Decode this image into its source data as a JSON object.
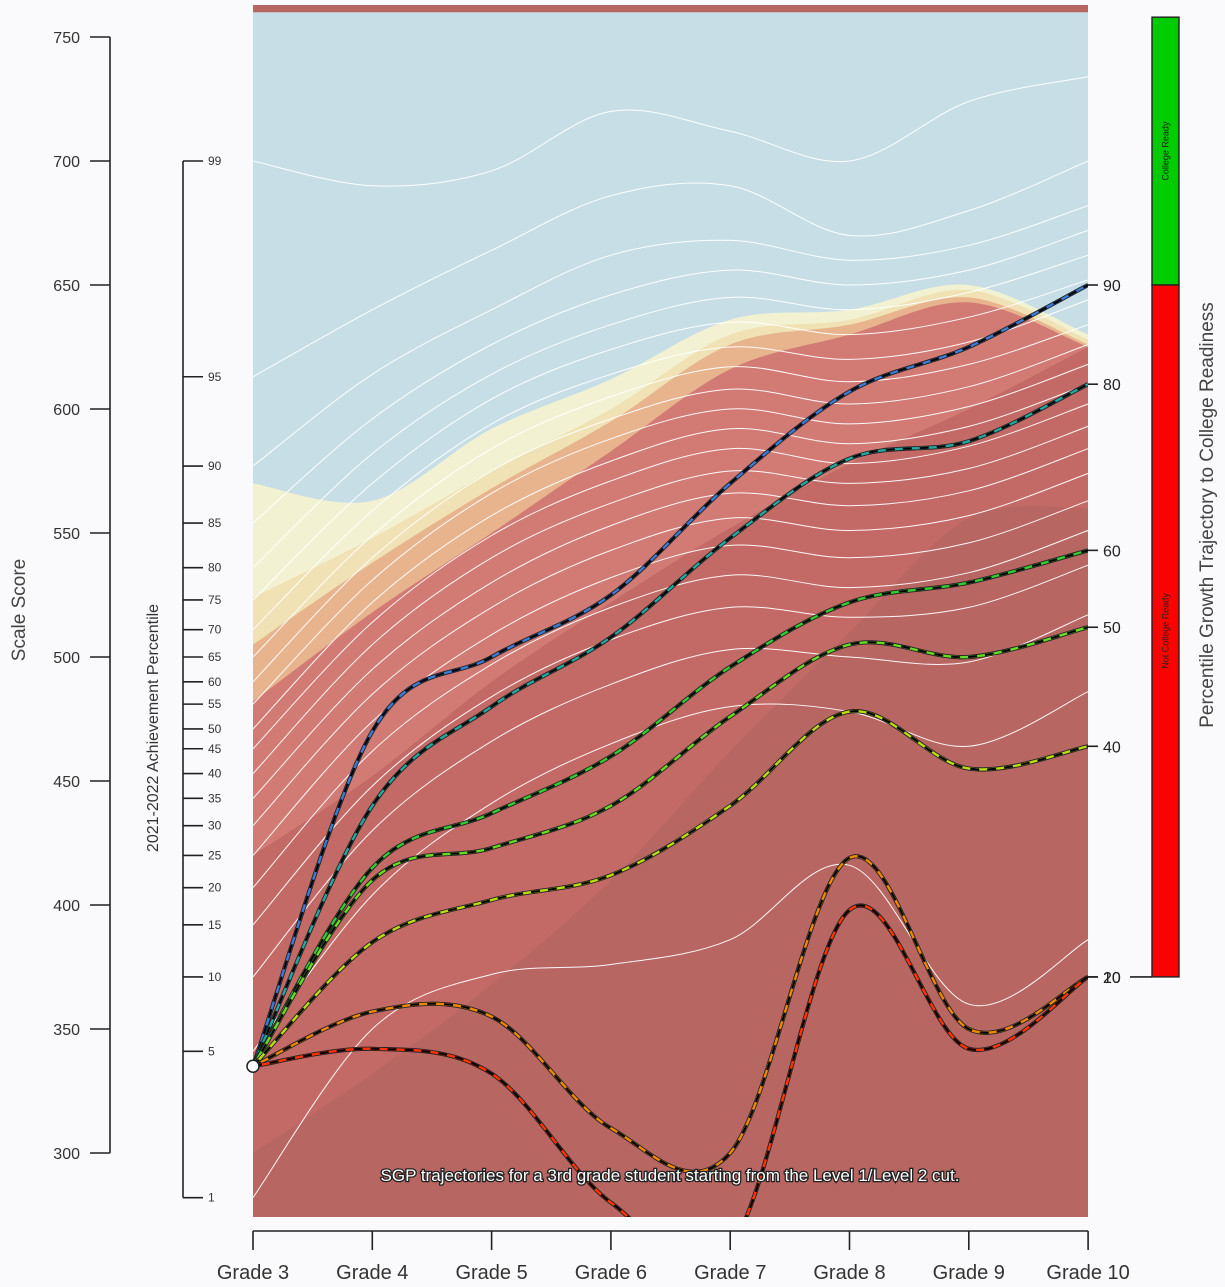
{
  "chart_data": {
    "type": "line",
    "grades": [
      "Grade 3",
      "Grade 4",
      "Grade 5",
      "Grade 6",
      "Grade 7",
      "Grade 8",
      "Grade 9",
      "Grade 10"
    ],
    "scale_axis": {
      "title": "Scale Score",
      "ticks": [
        300,
        350,
        400,
        450,
        500,
        550,
        600,
        650,
        700,
        750
      ],
      "range": [
        300,
        750
      ]
    },
    "percentile_axis": {
      "title": "2021-2022 Achievement Percentile",
      "ticks": [
        {
          "label": "99",
          "score": 700
        },
        {
          "label": "95",
          "score": 613
        },
        {
          "label": "90",
          "score": 577
        },
        {
          "label": "85",
          "score": 554
        },
        {
          "label": "80",
          "score": 536
        },
        {
          "label": "75",
          "score": 523
        },
        {
          "label": "70",
          "score": 511
        },
        {
          "label": "65",
          "score": 500
        },
        {
          "label": "60",
          "score": 490
        },
        {
          "label": "55",
          "score": 481
        },
        {
          "label": "50",
          "score": 471
        },
        {
          "label": "45",
          "score": 463
        },
        {
          "label": "40",
          "score": 453
        },
        {
          "label": "35",
          "score": 443
        },
        {
          "label": "30",
          "score": 432
        },
        {
          "label": "25",
          "score": 420
        },
        {
          "label": "20",
          "score": 407
        },
        {
          "label": "15",
          "score": 392
        },
        {
          "label": "10",
          "score": 371
        },
        {
          "label": "5",
          "score": 341
        },
        {
          "label": "1",
          "score": 282
        }
      ]
    },
    "growth_axis": {
      "title": "Percentile Growth Trajectory to College Readiness",
      "labels": [
        {
          "label": "90",
          "score": 650
        },
        {
          "label": "80",
          "score": 610
        },
        {
          "label": "60",
          "score": 543
        },
        {
          "label": "50",
          "score": 512
        },
        {
          "label": "40",
          "score": 464
        },
        {
          "label": "20",
          "score": 371
        },
        {
          "label": "10",
          "score": 371
        }
      ]
    },
    "readiness_bar": {
      "segments": [
        {
          "label": "College Ready",
          "color": "#00cc00",
          "from": 650,
          "to": 758
        },
        {
          "label": "Not College Ready",
          "color": "#ff0000",
          "from": 371,
          "to": 650
        }
      ]
    },
    "level_bands": {
      "colors": [
        "#c8dee6",
        "#f2f2d2",
        "#f0e2b4",
        "#e8b48e",
        "#d27a74",
        "#c46a66",
        "#b86662"
      ]
    },
    "start_point": {
      "grade": "Grade 3",
      "score": 335
    },
    "trajectories": [
      {
        "percentile": 90,
        "color": "#3a7bd5",
        "scores": [
          335,
          470,
          500,
          525,
          570,
          607,
          625,
          650
        ]
      },
      {
        "percentile": 80,
        "color": "#22a8a0",
        "scores": [
          335,
          440,
          480,
          508,
          548,
          580,
          587,
          610
        ]
      },
      {
        "percentile": 60,
        "color": "#33cc33",
        "scores": [
          335,
          415,
          437,
          460,
          496,
          522,
          530,
          543
        ]
      },
      {
        "percentile": 50,
        "color": "#66dd22",
        "scores": [
          335,
          410,
          423,
          440,
          476,
          505,
          500,
          512
        ]
      },
      {
        "percentile": 40,
        "color": "#bbdd11",
        "scores": [
          335,
          385,
          402,
          412,
          440,
          478,
          455,
          464
        ]
      },
      {
        "percentile": 20,
        "color": "#ee8800",
        "scores": [
          335,
          357,
          355,
          310,
          300,
          419,
          350,
          371
        ]
      },
      {
        "percentile": 10,
        "color": "#ff3300",
        "scores": [
          335,
          342,
          332,
          280,
          262,
          398,
          342,
          371
        ]
      }
    ],
    "caption": "SGP trajectories for a 3rd grade student starting from the Level 1/Level 2 cut."
  }
}
